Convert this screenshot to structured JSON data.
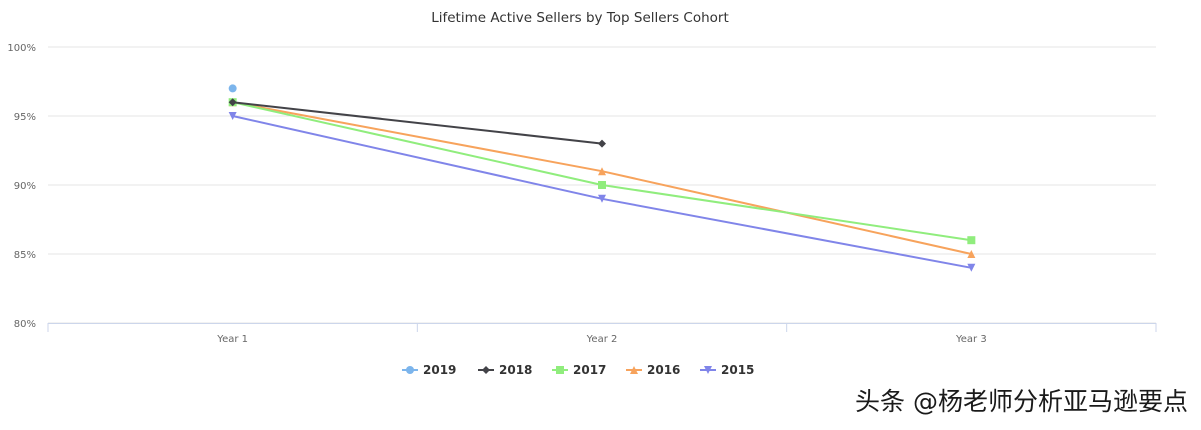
{
  "chart_data": {
    "type": "line",
    "title": "Lifetime Active Sellers by Top Sellers Cohort",
    "categories": [
      "Year 1",
      "Year 2",
      "Year 3"
    ],
    "ylim": [
      80,
      100
    ],
    "yticks": [
      "80%",
      "85%",
      "90%",
      "95%",
      "100%"
    ],
    "ytick_values": [
      80,
      85,
      90,
      95,
      100
    ],
    "grid": true,
    "legend": "bottom-center",
    "series": [
      {
        "name": "2019",
        "values": [
          97,
          null,
          null
        ],
        "color": "#7cb5ec",
        "marker": "circle"
      },
      {
        "name": "2018",
        "values": [
          96,
          93,
          null
        ],
        "color": "#434348",
        "marker": "diamond"
      },
      {
        "name": "2017",
        "values": [
          96,
          90,
          86
        ],
        "color": "#90ed7d",
        "marker": "square"
      },
      {
        "name": "2016",
        "values": [
          96,
          91,
          85
        ],
        "color": "#f7a35c",
        "marker": "triangle"
      },
      {
        "name": "2015",
        "values": [
          95,
          89,
          84
        ],
        "color": "#8085e9",
        "marker": "triangle-down"
      }
    ]
  },
  "watermark": "头条 @杨老师分析亚马逊要点"
}
